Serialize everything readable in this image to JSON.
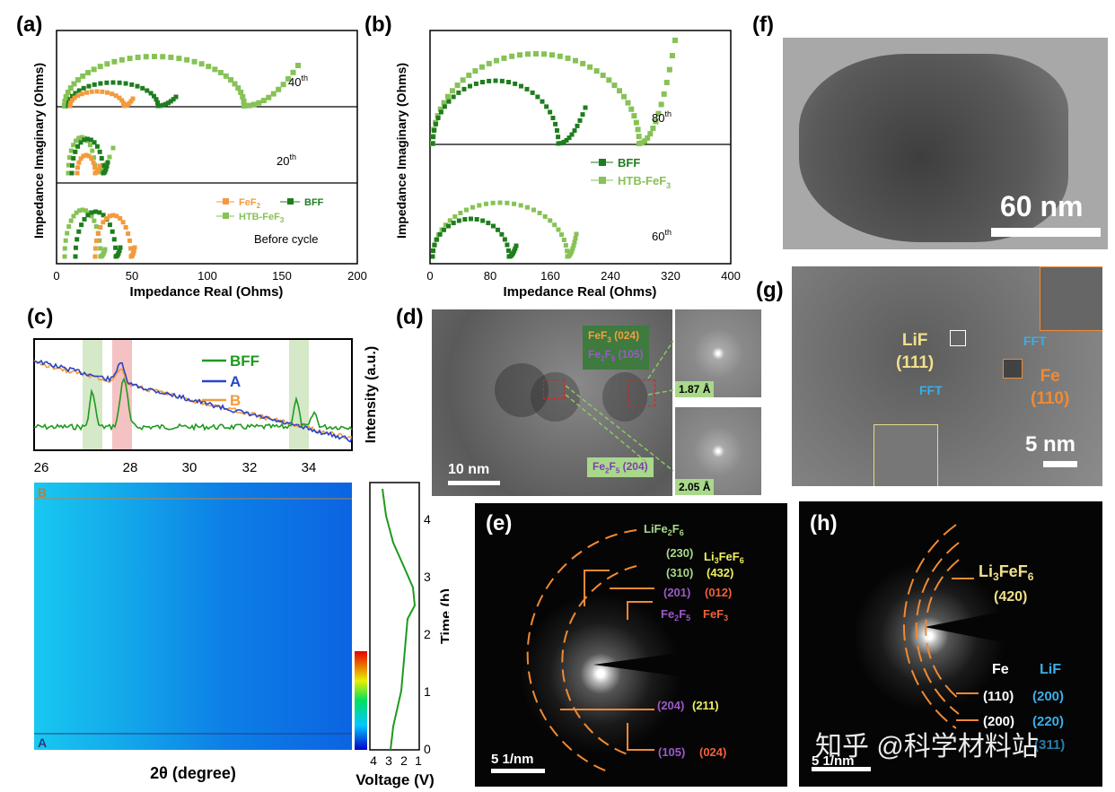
{
  "panels": {
    "a": "(a)",
    "b": "(b)",
    "c": "(c)",
    "d": "(d)",
    "e": "(e)",
    "f": "(f)",
    "g": "(g)",
    "h": "(h)"
  },
  "colors": {
    "BFF": "#1e7d1e",
    "HTB": "#86c256",
    "FeF2": "#f39a3c",
    "A": "#2a45c8",
    "B": "#f39a3c",
    "ringOrange": "#f08a33"
  },
  "panel_a": {
    "ylabel": "Impedance Imaginary (Ohms)",
    "xlabel": "Impedance Real (Ohms)",
    "xticks": [
      "0",
      "50",
      "100",
      "150",
      "200"
    ],
    "labels": {
      "top": "40",
      "mid": "20",
      "bot": "Before cycle",
      "sup": "th"
    },
    "legend": {
      "fef2": "FeF",
      "fef2_sub": "2",
      "bff": "BFF",
      "htb": "HTB-FeF",
      "htb_sub": "3"
    }
  },
  "panel_b": {
    "ylabel": "Impedance Imaginary (Ohms)",
    "xlabel": "Impedance Real (Ohms)",
    "xticks": [
      "0",
      "80",
      "160",
      "240",
      "320",
      "400"
    ],
    "labels": {
      "top": "80",
      "bot": "60",
      "sup": "th"
    },
    "legend": {
      "bff": "BFF",
      "htb": "HTB-FeF",
      "htb_sub": "3"
    }
  },
  "panel_c": {
    "ylabel_right": "Intensity (a.u.)",
    "xticks": [
      "26",
      "28",
      "30",
      "32",
      "34"
    ],
    "legend": [
      "BFF",
      "A",
      "B"
    ],
    "marker_B": "B",
    "marker_A": "A",
    "xlabel": "2θ (degree)",
    "time_label": "Time (h)",
    "time_ticks": [
      "0",
      "1",
      "2",
      "3",
      "4"
    ],
    "voltage_label": "Voltage (V)",
    "voltage_ticks": [
      "4",
      "3",
      "2",
      "1"
    ]
  },
  "panel_d": {
    "label1a": "FeF",
    "label1b": "3",
    "label1c": " (024)",
    "label2a": "Fe",
    "label2b": "2",
    "label2c": "F",
    "label2d": "5",
    "label2e": " (105)",
    "label3a": "Fe",
    "label3b": "2",
    "label3c": "F",
    "label3d": "5",
    "label3e": " (204)",
    "scale": "10 nm",
    "d1": "1.87 Å",
    "d2": "2.05 Å"
  },
  "panel_e": {
    "lfa": "LiFe",
    "lfb": "2",
    "lfc": "F",
    "lfd": "6",
    "li3a": "Li",
    "li3b": "3",
    "li3c": "FeF",
    "li3d": "6",
    "fe2a": "Fe",
    "fe2b": "2",
    "fe2c": "F",
    "fe2d": "5",
    "fef3a": "FeF",
    "fef3b": "3",
    "i230": "(230)",
    "i310": "(310)",
    "i432": "(432)",
    "i201": "(201)",
    "i012": "(012)",
    "i204": "(204)",
    "i211": "(211)",
    "i105": "(105)",
    "i024": "(024)",
    "scale": "5 1/nm"
  },
  "panel_f": {
    "scale": "60 nm"
  },
  "panel_g": {
    "lif": "LiF",
    "lif_idx": "(111)",
    "fft1": "FFT",
    "fft2": "FFT",
    "fe": "Fe",
    "fe_idx": "(110)",
    "scale": "5 nm"
  },
  "panel_h": {
    "li3a": "Li",
    "li3b": "3",
    "li3c": "FeF",
    "li3d": "6",
    "i420": "(420)",
    "fe": "Fe",
    "lif": "LiF",
    "i110": "(110)",
    "i200": "(200)",
    "i200b": "(200)",
    "i220": "(220)",
    "i_partial": "(311)",
    "watermark": "知乎 @科学材料站",
    "scale": "5 1/nm"
  }
}
